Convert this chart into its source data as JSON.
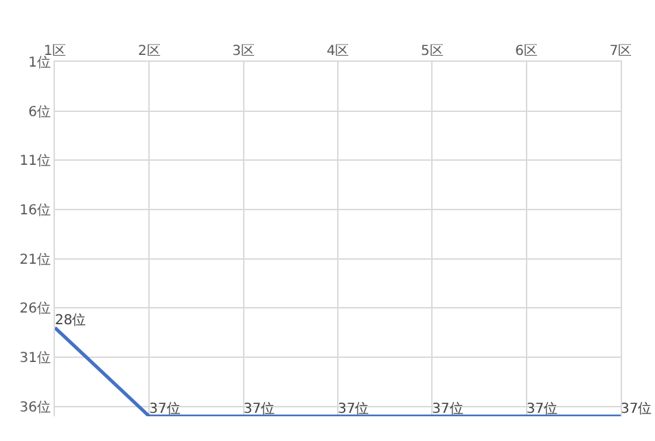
{
  "chart_data": {
    "type": "line",
    "categories": [
      "1区",
      "2区",
      "3区",
      "4区",
      "5区",
      "6区",
      "7区"
    ],
    "series": [
      {
        "color": "#4472c4",
        "values": [
          28,
          37,
          37,
          37,
          37,
          37,
          37
        ],
        "value_labels": [
          "28位",
          "37位",
          "37位",
          "37位",
          "37位",
          "37位",
          "37位"
        ]
      }
    ],
    "ylim": [
      37,
      1
    ],
    "yticks": [
      {
        "value": 1,
        "label": "1位"
      },
      {
        "value": 6,
        "label": "6位"
      },
      {
        "value": 11,
        "label": "11位"
      },
      {
        "value": 16,
        "label": "16位"
      },
      {
        "value": 21,
        "label": "21位"
      },
      {
        "value": 26,
        "label": "26位"
      },
      {
        "value": 31,
        "label": "31位"
      },
      {
        "value": 36,
        "label": "36位"
      }
    ],
    "grid": true,
    "marker": "none",
    "line_style": "solid"
  }
}
